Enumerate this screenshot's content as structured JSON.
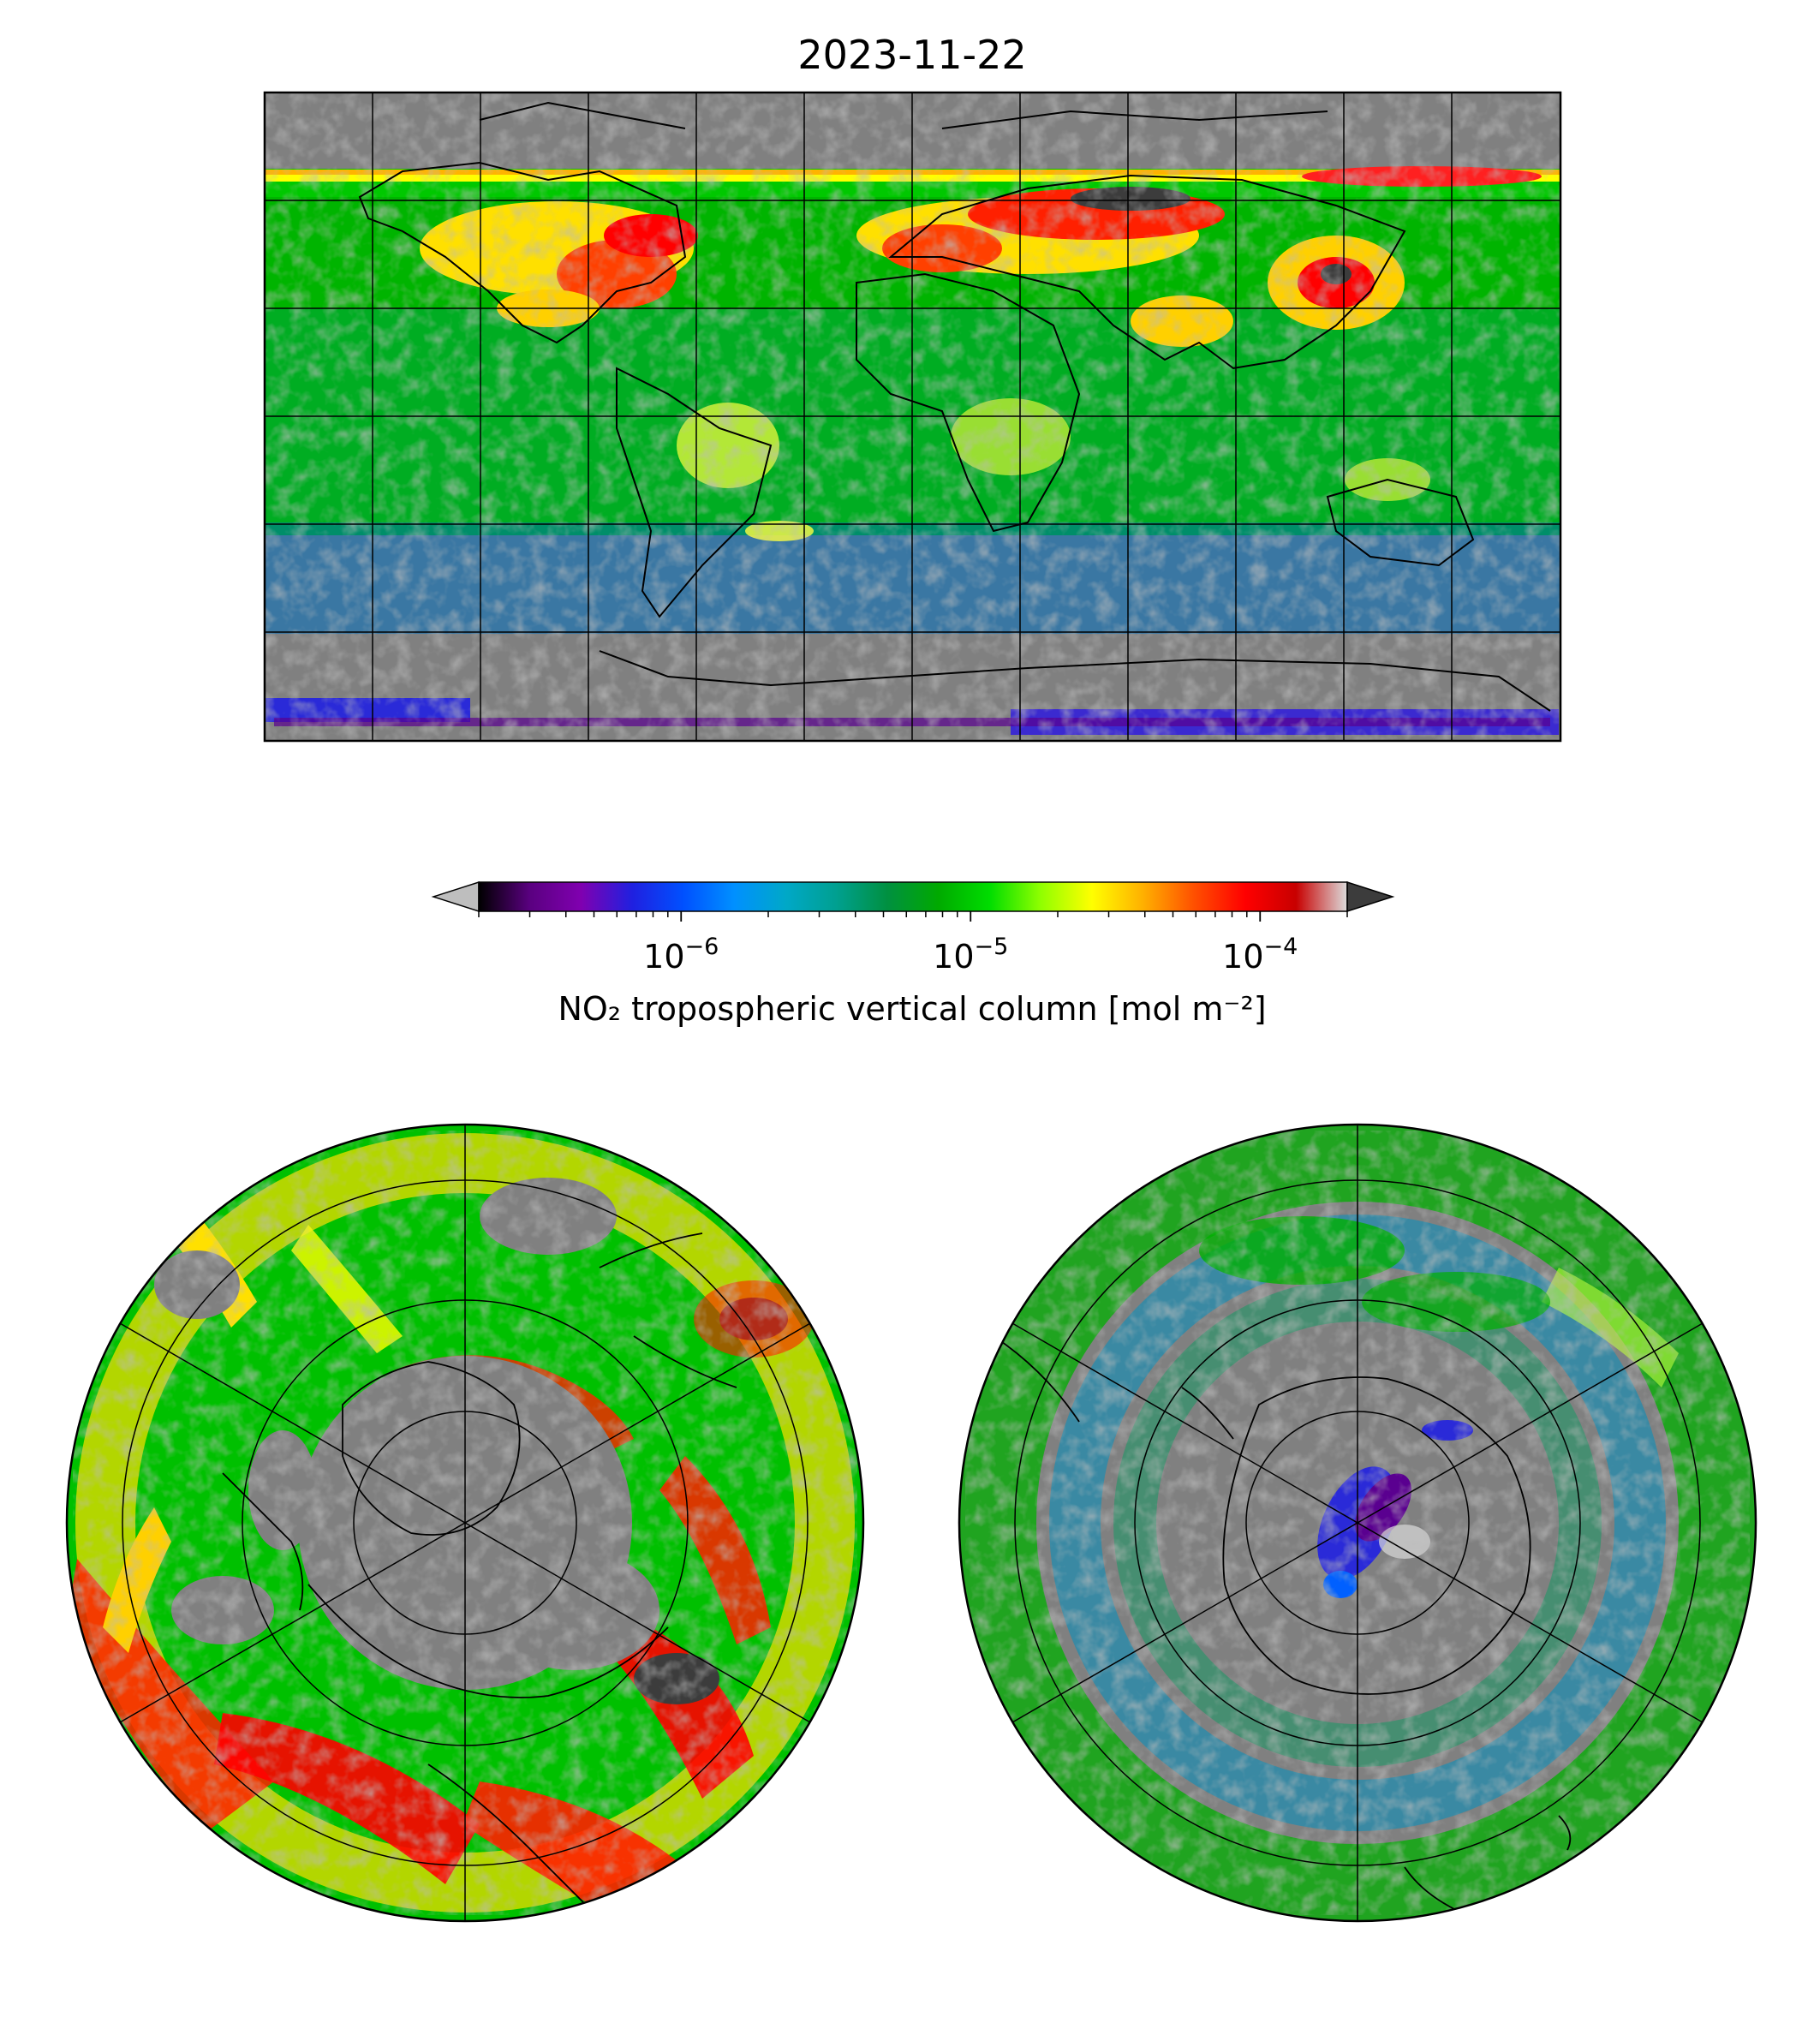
{
  "title": "2023-11-22",
  "colorbar": {
    "label": "NO₂ tropospheric vertical column [mol m⁻²]",
    "ticks": [
      {
        "base": "10",
        "exp": "−6",
        "value": 1e-06
      },
      {
        "base": "10",
        "exp": "−5",
        "value": 1e-05
      },
      {
        "base": "10",
        "exp": "−4",
        "value": 0.0001
      }
    ],
    "range": [
      2e-07,
      0.0002
    ],
    "scale": "log",
    "extend": "both",
    "under_color": "#bebebe",
    "over_color": "#3c3c3c",
    "colors": [
      "#000000",
      "#5a0080",
      "#8000b0",
      "#2020e0",
      "#0050ff",
      "#0090ff",
      "#00a8c8",
      "#00a090",
      "#009040",
      "#00aa00",
      "#00dd00",
      "#90ff00",
      "#ffff00",
      "#ffb000",
      "#ff5000",
      "#ff0000",
      "#c80000",
      "#dcdcdc"
    ]
  },
  "panels": [
    {
      "name": "global-map",
      "projection": "plate-carree"
    },
    {
      "name": "north-polar-map",
      "projection": "north-polar-stereographic"
    },
    {
      "name": "south-polar-map",
      "projection": "south-polar-stereographic"
    }
  ],
  "no_data_color": "#808080"
}
